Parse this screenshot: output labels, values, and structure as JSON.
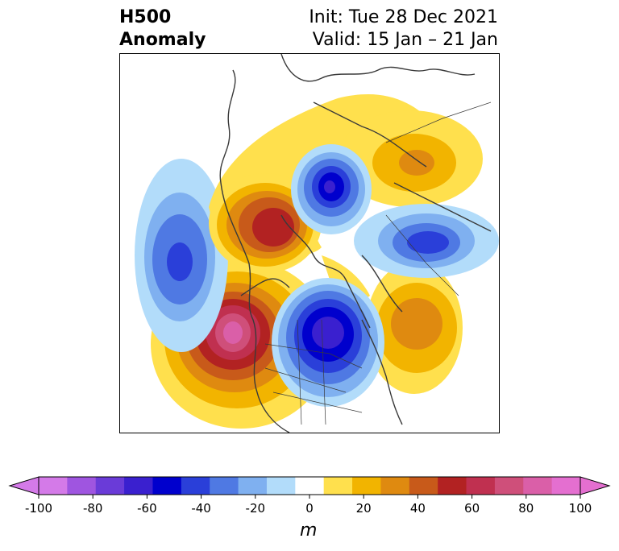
{
  "title": {
    "left_line1": "H500",
    "left_line2": "Anomaly",
    "right_line1": "Init: Tue 28 Dec 2021",
    "right_line2": "Valid: 15 Jan – 21 Jan"
  },
  "colorbar": {
    "unit_label": "m",
    "ticks": [
      "-100",
      "-80",
      "-60",
      "-40",
      "-20",
      "0",
      "20",
      "40",
      "60",
      "80",
      "100"
    ],
    "levels": [
      -100,
      -90,
      -80,
      -70,
      -60,
      -50,
      -40,
      -30,
      -20,
      -10,
      10,
      20,
      30,
      40,
      50,
      60,
      70,
      80,
      90,
      100
    ],
    "colors": [
      "#d47ae8",
      "#9f55e0",
      "#6a3bd8",
      "#3a20cf",
      "#0000cd",
      "#2a3fd9",
      "#4f79e3",
      "#7fb0f0",
      "#b2dcfa",
      "#ffffff",
      "#ffe04d",
      "#f2b400",
      "#df8a10",
      "#c85a1a",
      "#b22222",
      "#c03050",
      "#cf4f7a",
      "#da5fa8",
      "#e46fd0"
    ],
    "under_color": "#d47ae8",
    "over_color": "#e46fd0"
  },
  "map": {
    "anomalies": [
      {
        "name": "pacific-ridge",
        "value": 90
      },
      {
        "name": "arctic-ridge",
        "value": 60
      },
      {
        "name": "siberian-ridge",
        "value": 40
      },
      {
        "name": "atlantic-ridge",
        "value": 40
      },
      {
        "name": "north-america-trough",
        "value": -70
      },
      {
        "name": "arctic-trough",
        "value": -70
      },
      {
        "name": "pacific-trough",
        "value": -60
      },
      {
        "name": "eurasia-trough",
        "value": -60
      }
    ]
  }
}
